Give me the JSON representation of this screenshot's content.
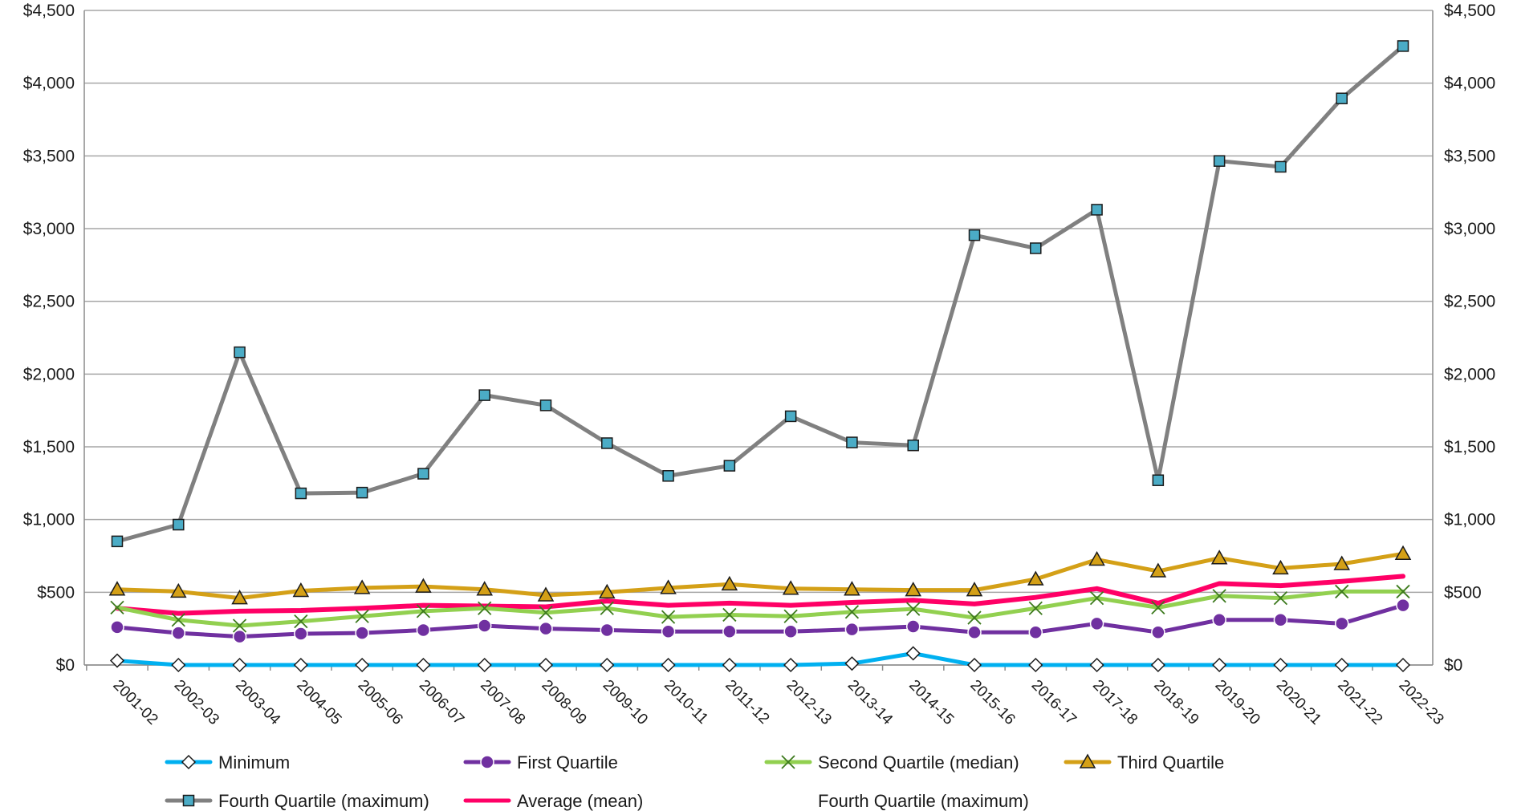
{
  "chart_data": {
    "type": "line",
    "title": "",
    "xlabel": "",
    "ylabel": "",
    "ylim": [
      0,
      4500
    ],
    "yticks": [
      "$0",
      "$500",
      "$1,000",
      "$1,500",
      "$2,000",
      "$2,500",
      "$3,000",
      "$3,500",
      "$4,000",
      "$4,500"
    ],
    "ytick_values": [
      0,
      500,
      1000,
      1500,
      2000,
      2500,
      3000,
      3500,
      4000,
      4500
    ],
    "secondary_y_axis": true,
    "grid": "horizontal",
    "legend_position": "bottom",
    "categories": [
      "2001-02",
      "2002-03",
      "2003-04",
      "2004-05",
      "2005-06",
      "2006-07",
      "2007-08",
      "2008-09",
      "2009-10",
      "2010-11",
      "2011-12",
      "2012-13",
      "2013-14",
      "2014-15",
      "2015-16",
      "2016-17",
      "2017-18",
      "2018-19",
      "2019-20",
      "2020-21",
      "2021-22",
      "2022-23"
    ],
    "series": [
      {
        "name": "Minimum",
        "color": "#00b0f0",
        "marker": "diamond",
        "values": [
          30,
          0,
          0,
          0,
          0,
          0,
          0,
          0,
          0,
          0,
          0,
          0,
          10,
          80,
          0,
          0,
          0,
          0,
          0,
          0,
          0,
          0
        ]
      },
      {
        "name": "First Quartile",
        "color": "#7030a0",
        "marker": "circle",
        "values": [
          260,
          220,
          195,
          215,
          220,
          240,
          270,
          250,
          240,
          230,
          230,
          230,
          245,
          265,
          225,
          225,
          285,
          225,
          310,
          310,
          285,
          410
        ]
      },
      {
        "name": "Second Quartile (median)",
        "color": "#92d050",
        "marker": "x",
        "values": [
          395,
          310,
          270,
          300,
          335,
          370,
          390,
          360,
          390,
          330,
          345,
          335,
          365,
          385,
          325,
          390,
          460,
          395,
          475,
          460,
          505,
          505
        ]
      },
      {
        "name": "Third Quartile",
        "color": "#d4a017",
        "marker": "triangle",
        "values": [
          520,
          505,
          460,
          510,
          530,
          540,
          520,
          480,
          500,
          530,
          555,
          525,
          520,
          515,
          515,
          590,
          725,
          645,
          735,
          665,
          695,
          765
        ]
      },
      {
        "name": "Fourth Quartile (maximum)",
        "color": "#808080",
        "marker": "square",
        "values": [
          850,
          965,
          2150,
          1180,
          1185,
          1315,
          1855,
          1785,
          1525,
          1300,
          1370,
          1710,
          1530,
          1510,
          2955,
          2865,
          3130,
          1270,
          3465,
          3425,
          3895,
          4255
        ]
      },
      {
        "name": "Average (mean)",
        "color": "#ff0066",
        "marker": "none",
        "values": [
          390,
          355,
          370,
          375,
          390,
          410,
          405,
          400,
          440,
          410,
          425,
          410,
          430,
          445,
          420,
          465,
          525,
          425,
          560,
          545,
          575,
          610
        ]
      }
    ],
    "legend_entries": [
      "Minimum",
      "First Quartile",
      "Second Quartile (median)",
      "Third Quartile",
      "Fourth Quartile (maximum)",
      "Average (mean)",
      "Fourth Quartile (maximum)"
    ]
  }
}
